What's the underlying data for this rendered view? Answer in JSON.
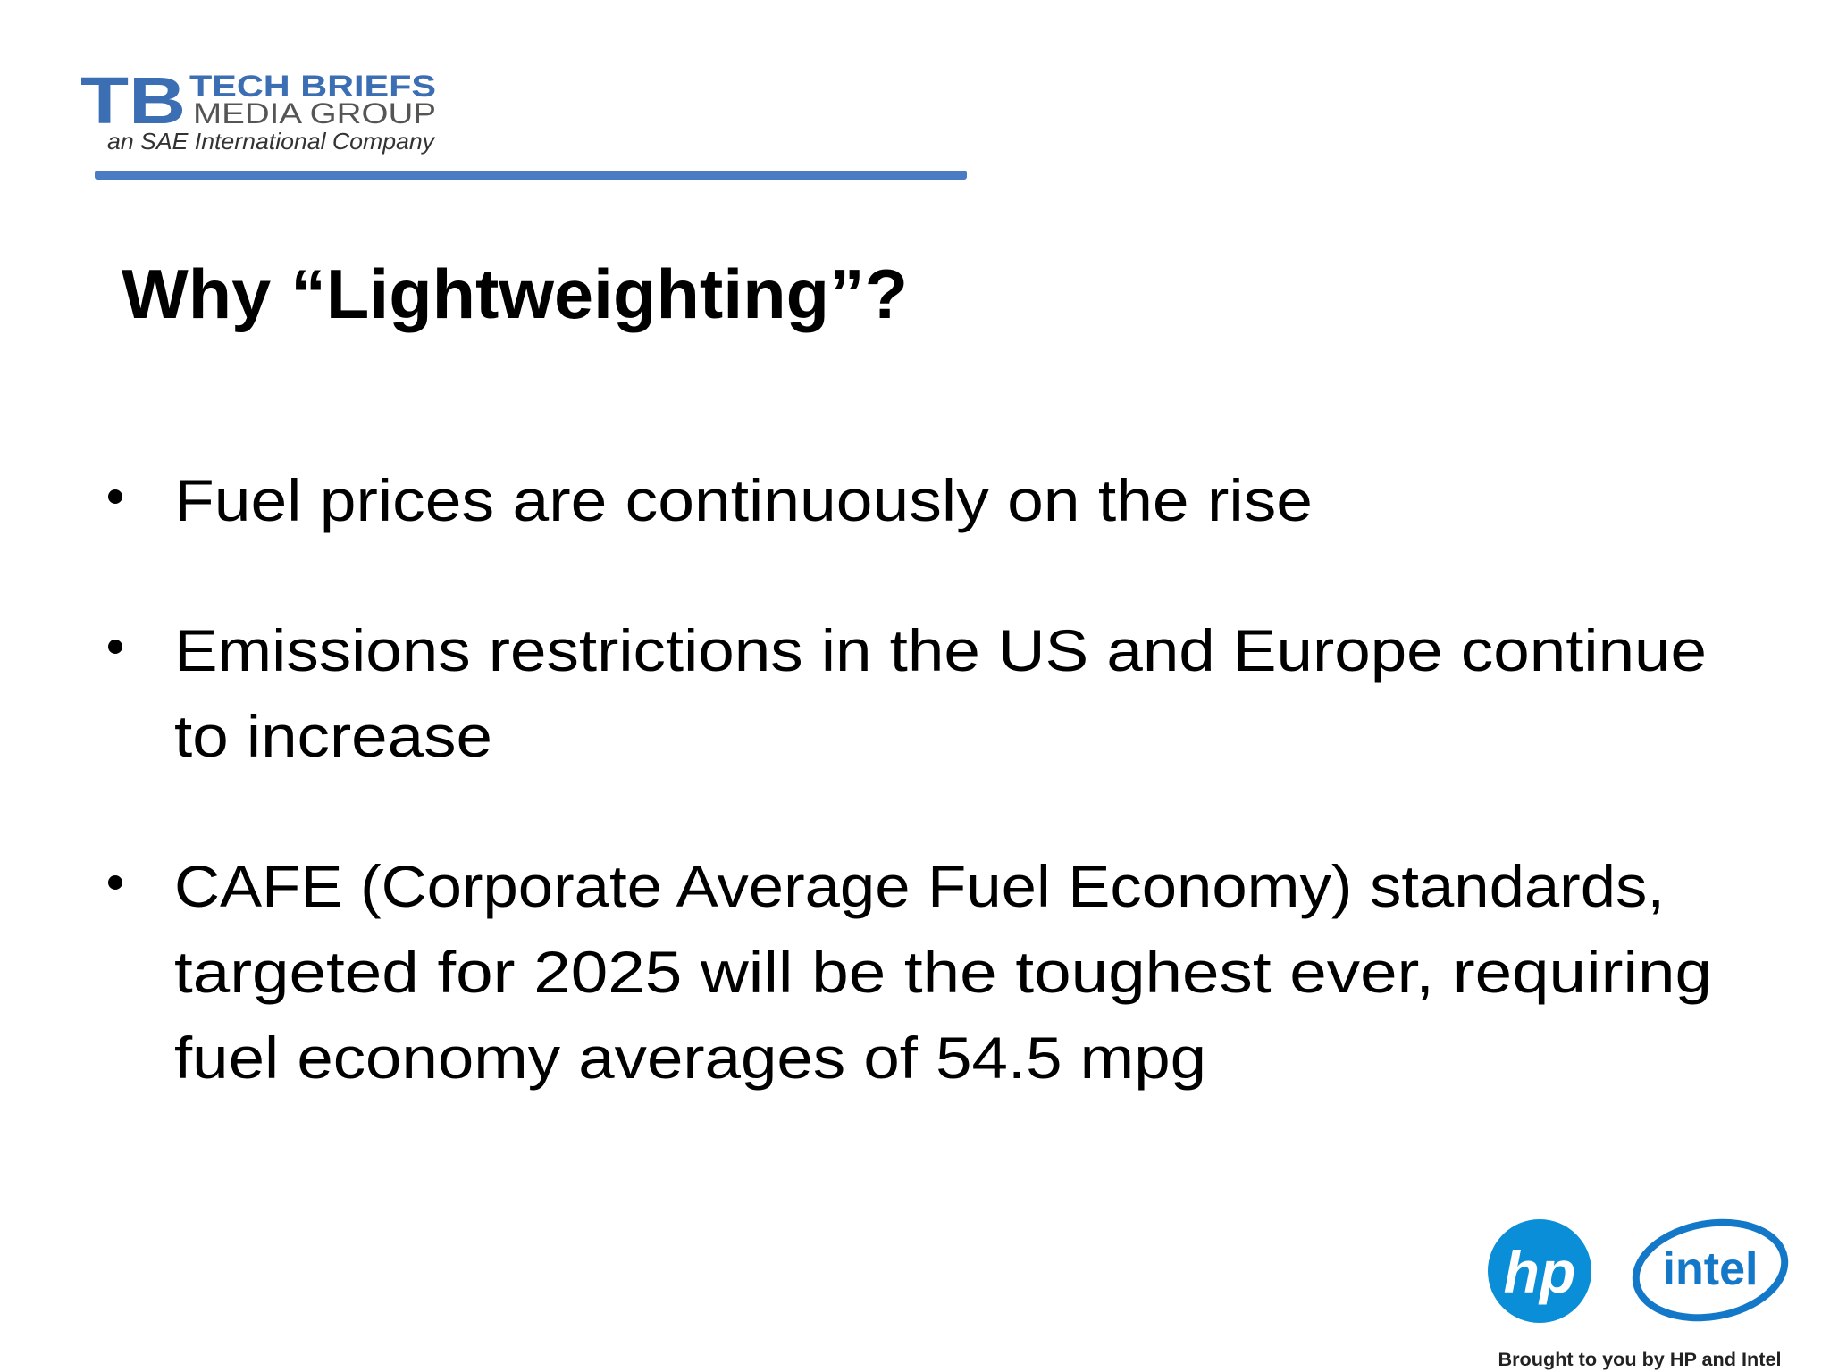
{
  "header": {
    "logo_mark": "TB",
    "logo_line1": "TECH BRIEFS",
    "logo_line2": "MEDIA GROUP",
    "logo_tagline": "an SAE International Company"
  },
  "title": "Why “Lightweighting”?",
  "bullets": [
    {
      "lines": [
        "Fuel prices are continuously on the rise"
      ]
    },
    {
      "lines": [
        "Emissions restrictions in the US and Europe continue",
        "to increase"
      ]
    },
    {
      "lines": [
        "CAFE (Corporate Average Fuel Economy) standards,",
        "targeted for 2025 will be the toughest ever, requiring",
        "fuel economy averages of 54.5 mpg"
      ]
    }
  ],
  "footer": {
    "hp_logo": "hp",
    "intel_logo": "intel",
    "credit": "Brought to you by HP and Intel"
  }
}
